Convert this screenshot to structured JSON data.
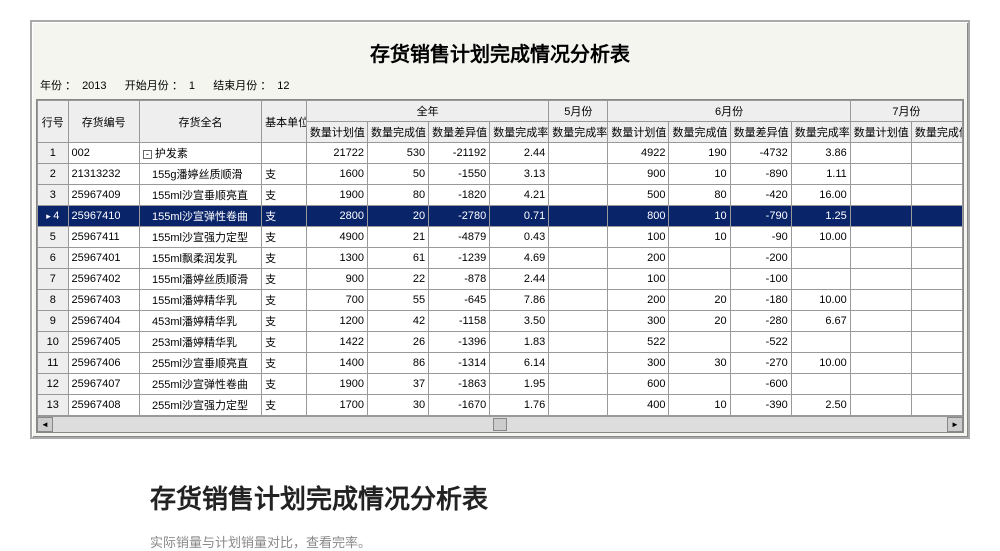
{
  "title": "存货销售计划完成情况分析表",
  "filters": {
    "year_label": "年份 ：",
    "year_value": "2013",
    "start_label": "开始月份 ：",
    "start_value": "1",
    "end_label": "结束月份 ：",
    "end_value": "12"
  },
  "group_headers": {
    "rownum": "行号",
    "code": "存货编号",
    "name": "存货全名",
    "unit": "基本单位",
    "g_full": "全年",
    "g_m5": "5月份",
    "g_m6": "6月份",
    "g_m7": "7月份"
  },
  "sub_headers": {
    "plan": "数量计划值",
    "done": "数量完成值",
    "diff": "数量差异值",
    "rate": "数量完成率",
    "m5_rate": "数量完成率",
    "m6_plan": "数量计划值",
    "m6_done": "数量完成值",
    "m6_diff": "数量差异值",
    "m6_rate": "数量完成率",
    "m7_plan": "数量计划值",
    "m7_done": "数量完成值"
  },
  "rows": [
    {
      "idx": "1",
      "code": "002",
      "name": "护发素",
      "unit": "",
      "plan": "21722",
      "done": "530",
      "diff": "-21192",
      "rate": "2.44",
      "m5_rate": "",
      "m6_plan": "4922",
      "m6_done": "190",
      "m6_diff": "-4732",
      "m6_rate": "3.86",
      "m7_plan": "",
      "tree": true
    },
    {
      "idx": "2",
      "code": "21313232",
      "name": "155g潘婷丝质顺滑",
      "unit": "支",
      "plan": "1600",
      "done": "50",
      "diff": "-1550",
      "rate": "3.13",
      "m5_rate": "",
      "m6_plan": "900",
      "m6_done": "10",
      "m6_diff": "-890",
      "m6_rate": "1.11",
      "m7_plan": ""
    },
    {
      "idx": "3",
      "code": "25967409",
      "name": "155ml沙宣垂顺亮直",
      "unit": "支",
      "plan": "1900",
      "done": "80",
      "diff": "-1820",
      "rate": "4.21",
      "m5_rate": "",
      "m6_plan": "500",
      "m6_done": "80",
      "m6_diff": "-420",
      "m6_rate": "16.00",
      "m7_plan": ""
    },
    {
      "idx": "4",
      "code": "25967410",
      "name": "155ml沙宣弹性卷曲",
      "unit": "支",
      "plan": "2800",
      "done": "20",
      "diff": "-2780",
      "rate": "0.71",
      "m5_rate": "",
      "m6_plan": "800",
      "m6_done": "10",
      "m6_diff": "-790",
      "m6_rate": "1.25",
      "m7_plan": "",
      "selected": true
    },
    {
      "idx": "5",
      "code": "25967411",
      "name": "155ml沙宣强力定型",
      "unit": "支",
      "plan": "4900",
      "done": "21",
      "diff": "-4879",
      "rate": "0.43",
      "m5_rate": "",
      "m6_plan": "100",
      "m6_done": "10",
      "m6_diff": "-90",
      "m6_rate": "10.00",
      "m7_plan": ""
    },
    {
      "idx": "6",
      "code": "25967401",
      "name": "155ml飘柔润发乳",
      "unit": "支",
      "plan": "1300",
      "done": "61",
      "diff": "-1239",
      "rate": "4.69",
      "m5_rate": "",
      "m6_plan": "200",
      "m6_done": "",
      "m6_diff": "-200",
      "m6_rate": "",
      "m7_plan": ""
    },
    {
      "idx": "7",
      "code": "25967402",
      "name": "155ml潘婷丝质顺滑",
      "unit": "支",
      "plan": "900",
      "done": "22",
      "diff": "-878",
      "rate": "2.44",
      "m5_rate": "",
      "m6_plan": "100",
      "m6_done": "",
      "m6_diff": "-100",
      "m6_rate": "",
      "m7_plan": ""
    },
    {
      "idx": "8",
      "code": "25967403",
      "name": "155ml潘婷精华乳",
      "unit": "支",
      "plan": "700",
      "done": "55",
      "diff": "-645",
      "rate": "7.86",
      "m5_rate": "",
      "m6_plan": "200",
      "m6_done": "20",
      "m6_diff": "-180",
      "m6_rate": "10.00",
      "m7_plan": ""
    },
    {
      "idx": "9",
      "code": "25967404",
      "name": "453ml潘婷精华乳",
      "unit": "支",
      "plan": "1200",
      "done": "42",
      "diff": "-1158",
      "rate": "3.50",
      "m5_rate": "",
      "m6_plan": "300",
      "m6_done": "20",
      "m6_diff": "-280",
      "m6_rate": "6.67",
      "m7_plan": ""
    },
    {
      "idx": "10",
      "code": "25967405",
      "name": "253ml潘婷精华乳",
      "unit": "支",
      "plan": "1422",
      "done": "26",
      "diff": "-1396",
      "rate": "1.83",
      "m5_rate": "",
      "m6_plan": "522",
      "m6_done": "",
      "m6_diff": "-522",
      "m6_rate": "",
      "m7_plan": ""
    },
    {
      "idx": "11",
      "code": "25967406",
      "name": "255ml沙宣垂顺亮直",
      "unit": "支",
      "plan": "1400",
      "done": "86",
      "diff": "-1314",
      "rate": "6.14",
      "m5_rate": "",
      "m6_plan": "300",
      "m6_done": "30",
      "m6_diff": "-270",
      "m6_rate": "10.00",
      "m7_plan": ""
    },
    {
      "idx": "12",
      "code": "25967407",
      "name": "255ml沙宣弹性卷曲",
      "unit": "支",
      "plan": "1900",
      "done": "37",
      "diff": "-1863",
      "rate": "1.95",
      "m5_rate": "",
      "m6_plan": "600",
      "m6_done": "",
      "m6_diff": "-600",
      "m6_rate": "",
      "m7_plan": ""
    },
    {
      "idx": "13",
      "code": "25967408",
      "name": "255ml沙宣强力定型",
      "unit": "支",
      "plan": "1700",
      "done": "30",
      "diff": "-1670",
      "rate": "1.76",
      "m5_rate": "",
      "m6_plan": "400",
      "m6_done": "10",
      "m6_diff": "-390",
      "m6_rate": "2.50",
      "m7_plan": ""
    }
  ],
  "caption": {
    "title": "存货销售计划完成情况分析表",
    "subtitle": "实际销量与计划销量对比，查看完率。"
  },
  "col_widths": {
    "idx": 30,
    "code": 70,
    "name": 120,
    "unit": 44,
    "plan": 60,
    "done": 60,
    "diff": 60,
    "rate": 58,
    "m5_rate": 58,
    "m6_plan": 60,
    "m6_done": 60,
    "m6_diff": 60,
    "m6_rate": 58,
    "m7_plan": 60,
    "m7_done": 50
  }
}
